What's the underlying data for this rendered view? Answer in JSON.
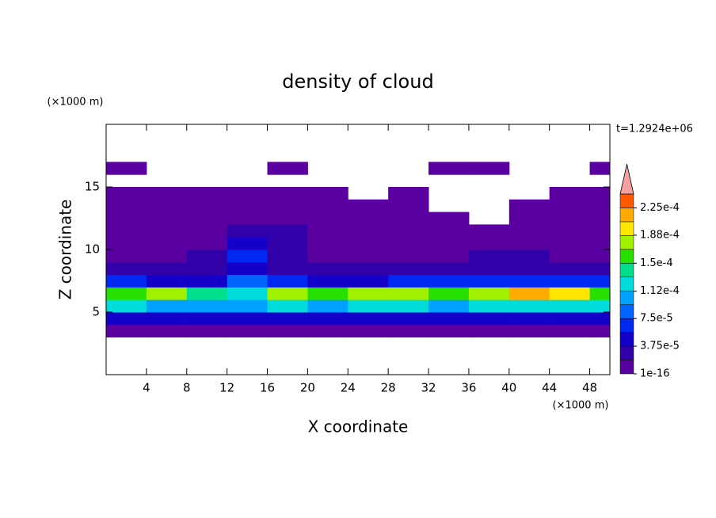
{
  "chart_data": {
    "type": "contour",
    "title": "density of cloud",
    "subtitle": "t=1.2924e+06",
    "x_label": "X coordinate",
    "y_label": "Z coordinate",
    "x_unit": "(×1000 m)",
    "y_unit": "(×1000 m)",
    "xlim": [
      0,
      50
    ],
    "ylim": [
      0,
      20
    ],
    "xticks": [
      4,
      8,
      12,
      16,
      20,
      24,
      28,
      32,
      36,
      40,
      44,
      48
    ],
    "yticks": [
      5,
      10,
      15
    ],
    "x": [
      2,
      6,
      10,
      14,
      18,
      22,
      26,
      30,
      34,
      38,
      42,
      46,
      50
    ],
    "y": [
      3.5,
      4.5,
      5.5,
      6.5,
      7.5,
      8.5,
      9.5,
      10.5,
      11.5,
      12.5,
      13.5,
      14.5,
      16.5
    ],
    "values": [
      [
        5e-06,
        5e-06,
        5e-06,
        5e-06,
        5e-06,
        5e-06,
        5e-06,
        5e-06,
        5e-06,
        5e-06,
        5e-06,
        5e-06,
        5e-06
      ],
      [
        4e-05,
        5e-05,
        4e-05,
        5e-05,
        4e-05,
        4e-05,
        5e-05,
        4e-05,
        5e-05,
        4e-05,
        4e-05,
        5e-05,
        4e-05
      ],
      [
        0.00012,
        0.00011,
        0.0001,
        0.00011,
        0.00012,
        0.00011,
        0.00012,
        0.00012,
        0.00011,
        0.00012,
        0.00013,
        0.00013,
        0.00012
      ],
      [
        0.00016,
        0.00017,
        0.00014,
        0.00013,
        0.00018,
        0.00015,
        0.00017,
        0.00018,
        0.00015,
        0.00018,
        0.00021,
        0.0002,
        0.00016
      ],
      [
        6e-05,
        5e-05,
        5e-05,
        8e-05,
        6e-05,
        5e-05,
        5e-05,
        6e-05,
        6e-05,
        7e-05,
        7e-05,
        6e-05,
        6e-05
      ],
      [
        2.5e-05,
        2.5e-05,
        3e-05,
        5e-05,
        2.5e-05,
        2.5e-05,
        2.5e-05,
        2.5e-05,
        2.5e-05,
        3e-05,
        3e-05,
        2.5e-05,
        2.5e-05
      ],
      [
        1.5e-05,
        1.5e-05,
        2e-05,
        6e-05,
        2e-05,
        1.5e-05,
        1.5e-05,
        1.5e-05,
        1.5e-05,
        2e-05,
        2e-05,
        1.5e-05,
        1.5e-05
      ],
      [
        8e-06,
        1e-05,
        1e-05,
        4e-05,
        2e-05,
        1e-05,
        1e-05,
        1e-05,
        1e-05,
        1e-05,
        1e-05,
        1e-05,
        8e-06
      ],
      [
        5e-06,
        8e-06,
        8e-06,
        2e-05,
        2e-05,
        8e-06,
        8e-06,
        8e-06,
        8e-06,
        5e-06,
        8e-06,
        8e-06,
        5e-06
      ],
      [
        3e-06,
        5e-06,
        5e-06,
        5e-06,
        5e-06,
        5e-06,
        5e-06,
        5e-06,
        5e-06,
        null,
        5e-06,
        5e-06,
        5e-06
      ],
      [
        3e-06,
        3e-06,
        3e-06,
        3e-06,
        3e-06,
        3e-06,
        3e-06,
        3e-06,
        null,
        null,
        3e-06,
        3e-06,
        3e-06
      ],
      [
        2e-06,
        2e-06,
        2e-06,
        2e-06,
        2e-06,
        2e-06,
        null,
        2e-06,
        null,
        null,
        null,
        2e-06,
        2e-06
      ],
      [
        2e-06,
        null,
        null,
        null,
        2e-06,
        null,
        null,
        null,
        2e-06,
        2e-06,
        null,
        null,
        2e-06
      ]
    ],
    "colorbar": {
      "levels": [
        1e-16,
        1.875e-05,
        3.75e-05,
        5.625e-05,
        7.5e-05,
        9.375e-05,
        0.0001125,
        0.00013125,
        0.00015,
        0.00016875,
        0.0001875,
        0.00020625,
        0.000225,
        0.00024375
      ],
      "colors": [
        "#5a00a0",
        "#3200a8",
        "#1400c8",
        "#0028f0",
        "#0064ff",
        "#00a0ff",
        "#00dcdc",
        "#00e08c",
        "#28e000",
        "#a0f000",
        "#ffe600",
        "#ffaa00",
        "#ff5a00"
      ],
      "extend_color": "#f4a0a0",
      "ticks": [
        {
          "value": 1e-16,
          "label": "1e-16"
        },
        {
          "value": 3.75e-05,
          "label": "3.75e-5"
        },
        {
          "value": 7.5e-05,
          "label": "7.5e-5"
        },
        {
          "value": 0.000112,
          "label": "1.12e-4"
        },
        {
          "value": 0.00015,
          "label": "1.5e-4"
        },
        {
          "value": 0.000188,
          "label": "1.88e-4"
        },
        {
          "value": 0.000225,
          "label": "2.25e-4"
        }
      ]
    }
  }
}
